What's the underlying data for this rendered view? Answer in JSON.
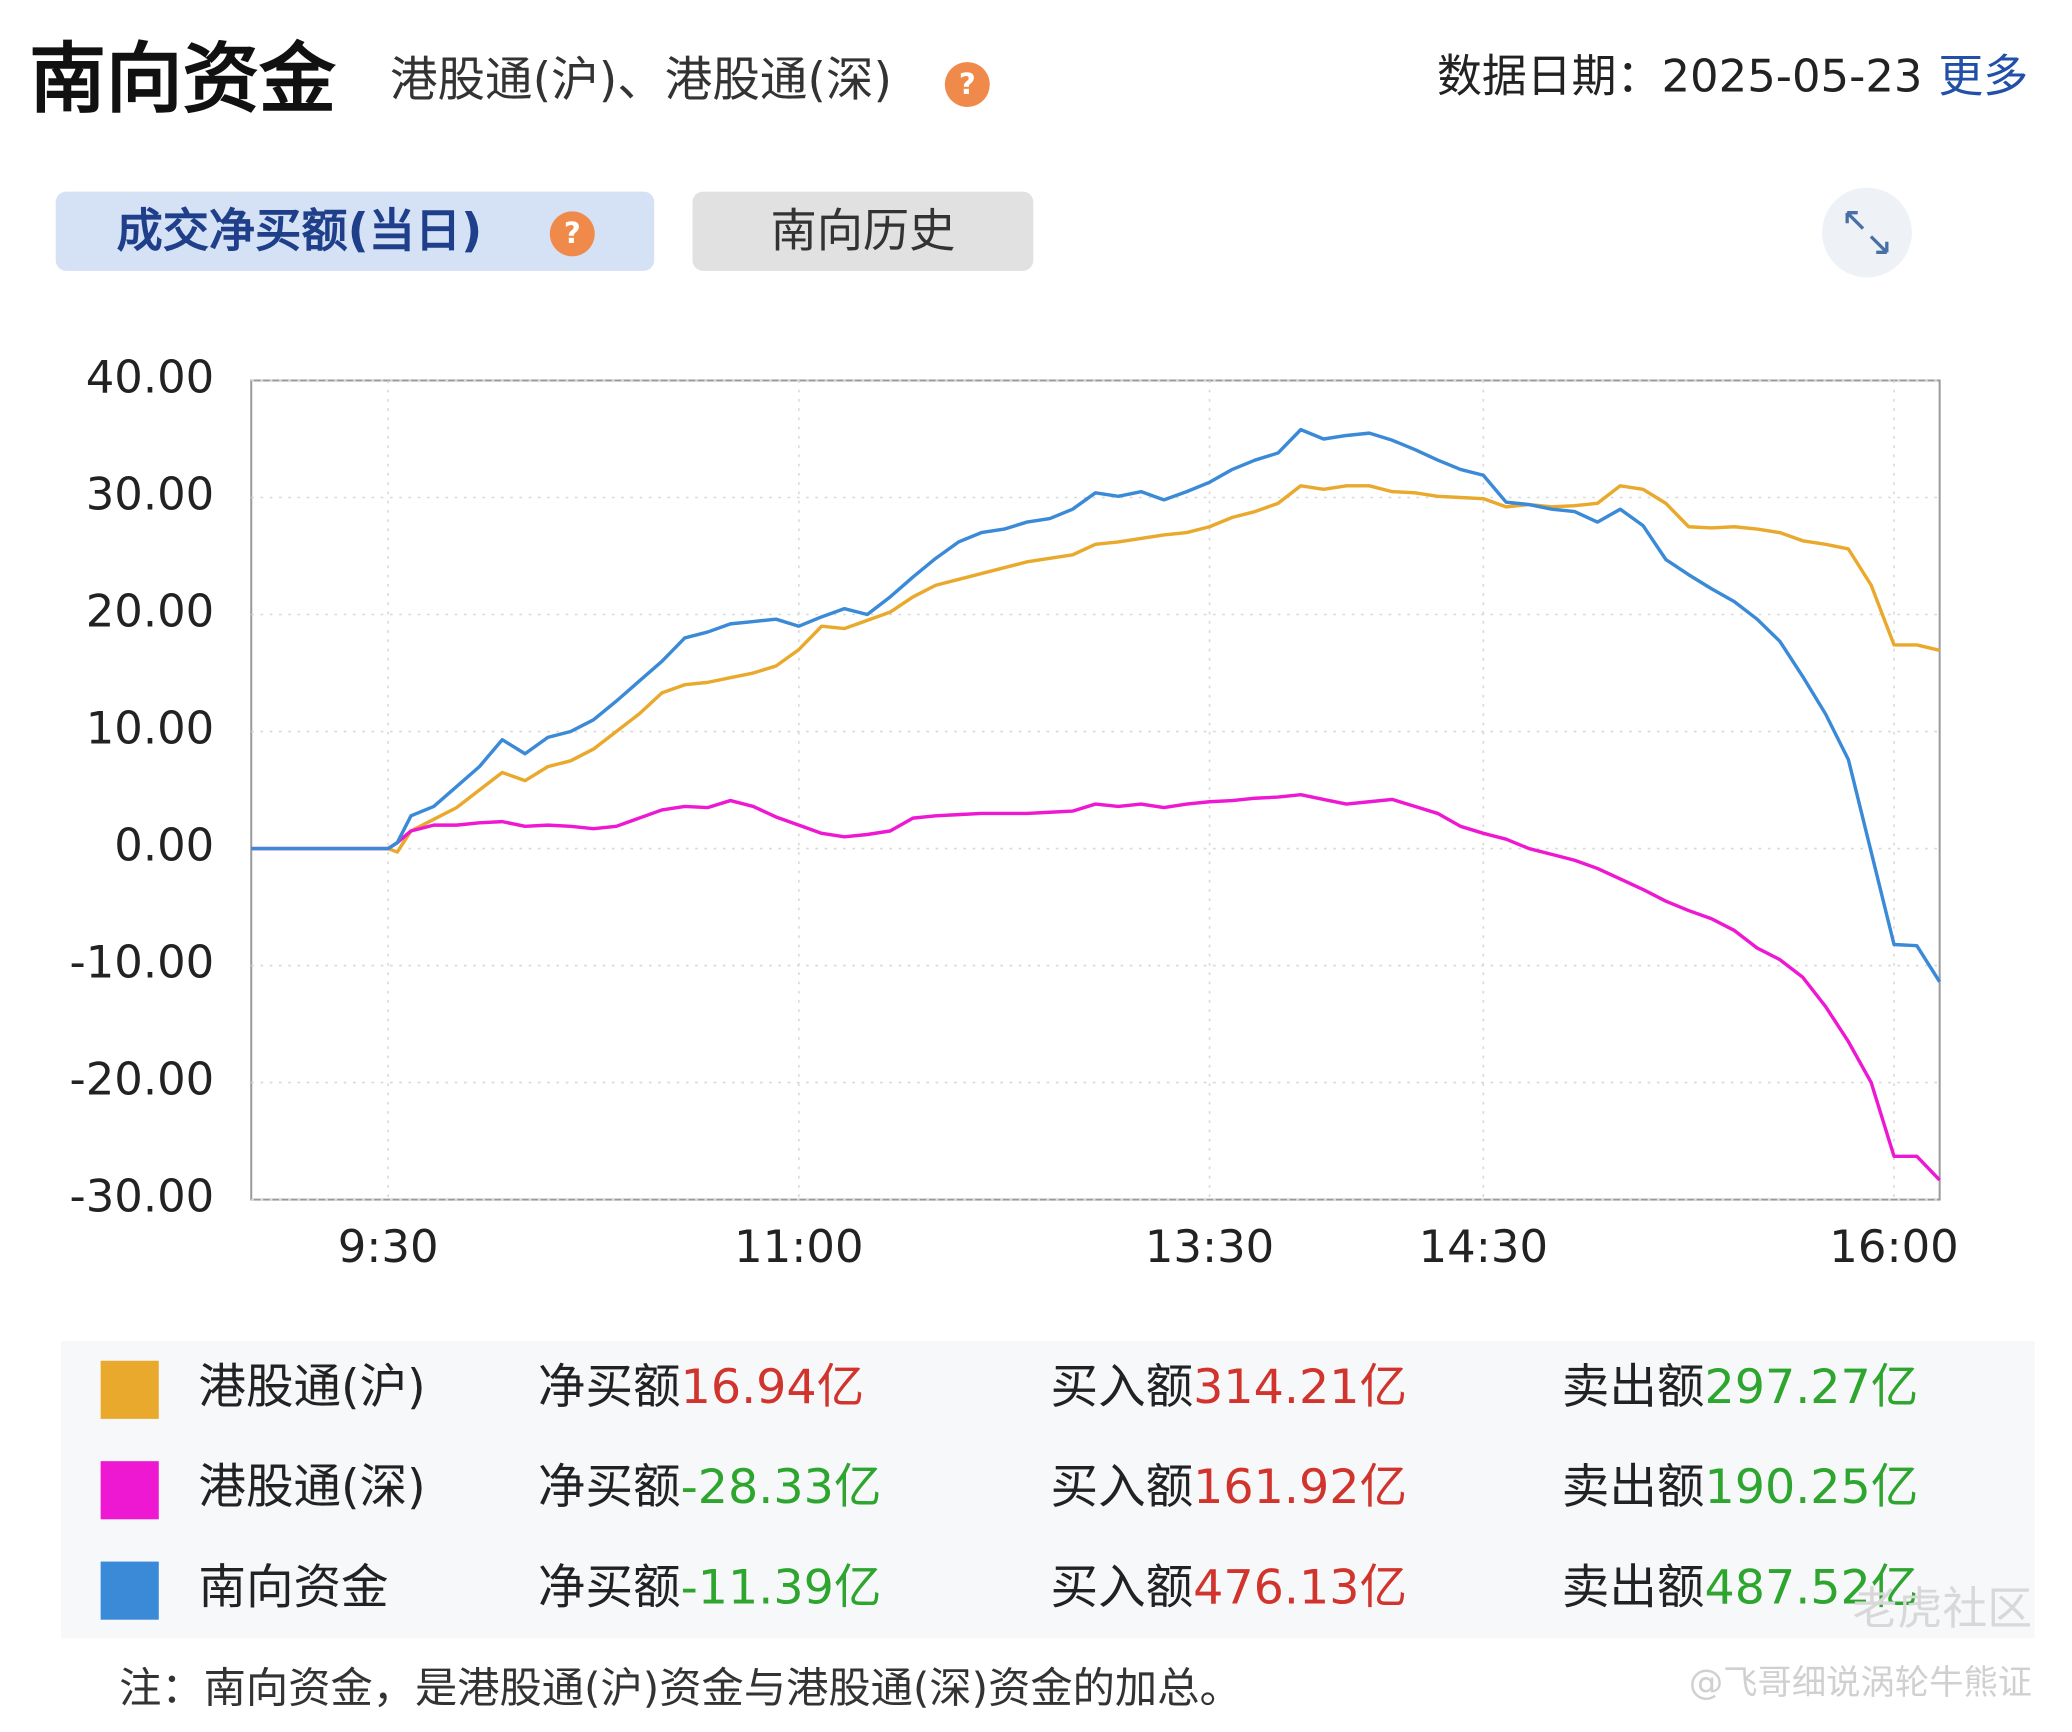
{
  "header": {
    "title": "南向资金",
    "subtitle": "港股通(沪)、港股通(深)",
    "help": "?",
    "date_label": "数据日期：",
    "date": "2025-05-23",
    "more": "更多"
  },
  "tabs": [
    {
      "label": "成交净买额(当日)",
      "help": "?"
    },
    {
      "label": "南向历史"
    }
  ],
  "chart_data": {
    "type": "line",
    "x": [
      0,
      10,
      20,
      30,
      32,
      35,
      40,
      45,
      50,
      55,
      60,
      65,
      70,
      75,
      80,
      85,
      90,
      95,
      100,
      105,
      110,
      115,
      120,
      125,
      130,
      135,
      140,
      145,
      150,
      155,
      160,
      165,
      170,
      175,
      180,
      185,
      190,
      195,
      200,
      205,
      210,
      215,
      220,
      225,
      230,
      235,
      240,
      245,
      250,
      255,
      260,
      265,
      270,
      275,
      280,
      285,
      290,
      295,
      300,
      305,
      310,
      315,
      320,
      325,
      330,
      335,
      340,
      345,
      350,
      355,
      360,
      365,
      370
    ],
    "xlim": [
      0,
      370
    ],
    "xticks": [
      {
        "value": 30,
        "label": "9:30"
      },
      {
        "value": 120,
        "label": "11:00"
      },
      {
        "value": 210,
        "label": "13:30"
      },
      {
        "value": 270,
        "label": "14:30"
      },
      {
        "value": 360,
        "label": "16:00"
      }
    ],
    "ylim": [
      -30,
      40
    ],
    "yticks": [
      {
        "value": 40,
        "label": "40.00"
      },
      {
        "value": 30,
        "label": "30.00"
      },
      {
        "value": 20,
        "label": "20.00"
      },
      {
        "value": 10,
        "label": "10.00"
      },
      {
        "value": 0,
        "label": "0.00"
      },
      {
        "value": -10,
        "label": "-10.00"
      },
      {
        "value": -20,
        "label": "-20.00"
      },
      {
        "value": -30,
        "label": "-30.00"
      }
    ],
    "grid": true,
    "series": [
      {
        "name": "港股通(沪)",
        "color": "#e9a92c",
        "values": [
          0,
          0,
          0,
          0,
          -0.3,
          1.5,
          2.5,
          3.5,
          5,
          6.5,
          5.8,
          7,
          7.5,
          8.5,
          10,
          11.5,
          13.3,
          14,
          14.2,
          14.6,
          15,
          15.6,
          17,
          19,
          18.8,
          19.5,
          20.2,
          21.5,
          22.5,
          23,
          23.5,
          24,
          24.5,
          24.8,
          25.1,
          26,
          26.2,
          26.5,
          26.8,
          27,
          27.5,
          28.3,
          28.8,
          29.5,
          31,
          30.7,
          31,
          31,
          30.5,
          30.4,
          30.1,
          30,
          29.9,
          29.2,
          29.4,
          29.2,
          29.3,
          29.5,
          31,
          30.7,
          29.5,
          27.5,
          27.4,
          27.5,
          27.3,
          27,
          26.3,
          26,
          25.6,
          22.5,
          17.4,
          17.4,
          16.94
        ]
      },
      {
        "name": "港股通(深)",
        "color": "#ee18d2",
        "values": [
          0,
          0,
          0,
          0,
          0.5,
          1.5,
          2,
          2,
          2.2,
          2.3,
          1.9,
          2,
          1.9,
          1.7,
          1.9,
          2.6,
          3.3,
          3.6,
          3.5,
          4.1,
          3.6,
          2.7,
          2,
          1.3,
          1,
          1.2,
          1.5,
          2.6,
          2.8,
          2.9,
          3,
          3,
          3,
          3.1,
          3.2,
          3.8,
          3.6,
          3.8,
          3.5,
          3.8,
          4,
          4.1,
          4.3,
          4.4,
          4.6,
          4.2,
          3.8,
          4,
          4.2,
          3.6,
          3,
          1.9,
          1.3,
          0.8,
          0,
          -0.5,
          -1,
          -1.7,
          -2.6,
          -3.5,
          -4.5,
          -5.3,
          -6,
          -7,
          -8.5,
          -9.5,
          -11,
          -13.5,
          -16.5,
          -20,
          -26.3,
          -26.3,
          -28.33
        ]
      },
      {
        "name": "南向资金",
        "color": "#3a8ad8",
        "values": [
          0,
          0,
          0,
          0,
          0.5,
          2.8,
          3.6,
          5.3,
          7,
          9.3,
          8.1,
          9.5,
          10,
          11,
          12.6,
          14.3,
          16,
          18,
          18.5,
          19.2,
          19.4,
          19.6,
          19,
          19.8,
          20.5,
          20,
          21.5,
          23.2,
          24.8,
          26.2,
          27,
          27.3,
          27.9,
          28.2,
          29,
          30.4,
          30.1,
          30.5,
          29.8,
          30.5,
          31.3,
          32.4,
          33.2,
          33.8,
          35.8,
          35,
          35.3,
          35.5,
          34.9,
          34.1,
          33.2,
          32.4,
          31.9,
          29.6,
          29.4,
          29,
          28.8,
          27.9,
          29,
          27.6,
          24.7,
          23.4,
          22.2,
          21.1,
          19.6,
          17.7,
          14.7,
          11.5,
          7.6,
          -0.3,
          -8.2,
          -8.3,
          -11.39
        ]
      }
    ]
  },
  "summary": {
    "buy_color": "#d0342c",
    "sell_color": "#2ea52e",
    "rows": [
      {
        "net_label": "净买额",
        "net": "16.94亿",
        "net_color": "#d0342c",
        "buy_label": "买入额",
        "buy": "314.21亿",
        "sell_label": "卖出额",
        "sell": "297.27亿"
      },
      {
        "net_label": "净买额",
        "net": "-28.33亿",
        "net_color": "#2ea52e",
        "buy_label": "买入额",
        "buy": "161.92亿",
        "sell_label": "卖出额",
        "sell": "190.25亿"
      },
      {
        "net_label": "净买额",
        "net": "-11.39亿",
        "net_color": "#2ea52e",
        "buy_label": "买入额",
        "buy": "476.13亿",
        "sell_label": "卖出额",
        "sell": "487.52亿"
      }
    ]
  },
  "note": "注：南向资金，是港股通(沪)资金与港股通(深)资金的加总。",
  "watermark": {
    "brand": "老虎社区",
    "author": "@飞哥细说涡轮牛熊证"
  }
}
